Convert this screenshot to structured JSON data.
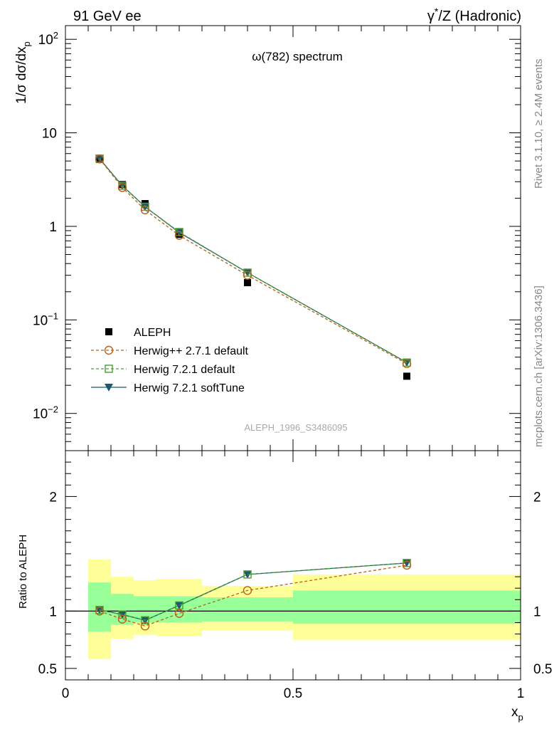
{
  "header": {
    "left": "91 GeV ee",
    "right_prefix": "γ",
    "right_sup": "*",
    "right_suffix": "/Z (Hadronic)"
  },
  "side_text": {
    "rivet": "Rivet 3.1.10, ≥ 2.4M events",
    "mcplots": "mcplots.cern.ch [arXiv:1306.3436]"
  },
  "chart_data": [
    {
      "type": "line",
      "title": "ω(782) spectrum",
      "ylabel": "1/σ dσ/dx",
      "ylabel_sub": "p",
      "yscale": "log",
      "ylim": [
        0.004,
        140
      ],
      "xlim": [
        0,
        1
      ],
      "yticks": [
        {
          "value": 0.01,
          "base": "10",
          "exp": "−2"
        },
        {
          "value": 0.1,
          "base": "10",
          "exp": "−1"
        },
        {
          "value": 1,
          "base": "1",
          "exp": ""
        },
        {
          "value": 10,
          "base": "10",
          "exp": ""
        },
        {
          "value": 100,
          "base": "10",
          "exp": "2"
        }
      ],
      "watermark": "ALEPH_1996_S3486095",
      "legend_position": "bottom-left",
      "x": [
        0.075,
        0.125,
        0.175,
        0.25,
        0.4,
        0.75
      ],
      "data": {
        "name": "ALEPH",
        "values": [
          5.2,
          2.8,
          1.75,
          0.82,
          0.25,
          0.025
        ],
        "color": "#000000",
        "marker": "filled-square"
      },
      "series": [
        {
          "name": "Herwig++ 2.7.1 default",
          "values": [
            5.25,
            2.6,
            1.5,
            0.8,
            0.3,
            0.034
          ],
          "color": "#b8601a",
          "marker": "open-circle",
          "dashed": true
        },
        {
          "name": "Herwig 7.2.1 default",
          "values": [
            5.3,
            2.72,
            1.62,
            0.87,
            0.32,
            0.035
          ],
          "color": "#4aa02c",
          "marker": "open-square",
          "dashed": true
        },
        {
          "name": "Herwig 7.2.1 softTune",
          "values": [
            5.3,
            2.72,
            1.62,
            0.86,
            0.32,
            0.035
          ],
          "color": "#1d5a6e",
          "marker": "filled-triangle-down",
          "dashed": false
        }
      ]
    },
    {
      "type": "line",
      "ylabel": "Ratio to ALEPH",
      "xlabel": "x",
      "xlabel_sub": "p",
      "ylim": [
        0.4,
        2.4
      ],
      "xlim": [
        0,
        1
      ],
      "yticks": [
        0.5,
        1,
        2
      ],
      "xticks": [
        {
          "value": 0,
          "label": "0"
        },
        {
          "value": 0.5,
          "label": "0.5"
        },
        {
          "value": 1,
          "label": "1"
        }
      ],
      "reference": 1,
      "bands": [
        {
          "x0": 0.05,
          "x1": 0.1,
          "inner": [
            0.82,
            1.25
          ],
          "outer": [
            0.58,
            1.45
          ]
        },
        {
          "x0": 0.1,
          "x1": 0.15,
          "inner": [
            0.88,
            1.15
          ],
          "outer": [
            0.76,
            1.3
          ]
        },
        {
          "x0": 0.15,
          "x1": 0.2,
          "inner": [
            0.9,
            1.13
          ],
          "outer": [
            0.79,
            1.27
          ]
        },
        {
          "x0": 0.2,
          "x1": 0.3,
          "inner": [
            0.9,
            1.13
          ],
          "outer": [
            0.78,
            1.28
          ]
        },
        {
          "x0": 0.3,
          "x1": 0.5,
          "inner": [
            0.91,
            1.12
          ],
          "outer": [
            0.83,
            1.22
          ]
        },
        {
          "x0": 0.5,
          "x1": 1.0,
          "inner": [
            0.89,
            1.18
          ],
          "outer": [
            0.75,
            1.32
          ]
        }
      ],
      "x": [
        0.075,
        0.125,
        0.175,
        0.25,
        0.4,
        0.75
      ],
      "series": [
        {
          "name": "Herwig++ 2.7.1 default",
          "values": [
            1.0,
            0.93,
            0.87,
            0.98,
            1.18,
            1.4
          ],
          "color": "#b8601a",
          "marker": "open-circle",
          "dashed": true
        },
        {
          "name": "Herwig 7.2.1 default",
          "values": [
            1.01,
            0.97,
            0.92,
            1.05,
            1.32,
            1.42
          ],
          "color": "#4aa02c",
          "marker": "open-square",
          "dashed": true
        },
        {
          "name": "Herwig 7.2.1 softTune",
          "values": [
            1.01,
            0.97,
            0.92,
            1.05,
            1.32,
            1.42
          ],
          "color": "#1d5a6e",
          "marker": "filled-triangle-down",
          "dashed": false
        }
      ],
      "band_colors": {
        "inner": "#99ff99",
        "outer": "#ffff99"
      }
    }
  ]
}
